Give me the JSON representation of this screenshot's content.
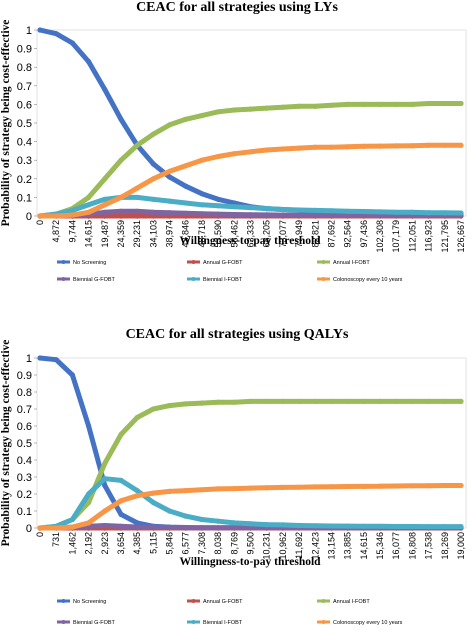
{
  "chart_data": [
    {
      "type": "line",
      "title": "CEAC for all strategies using LYs",
      "xlabel": "Willingness-to-pay threshold",
      "ylabel": "Probability of strategy being cost-effective",
      "ylim": [
        0,
        1
      ],
      "yticks": [
        "0",
        "0.1",
        "0.2",
        "0.3",
        "0.4",
        "0.5",
        "0.6",
        "0.7",
        "0.8",
        "0.9",
        "1"
      ],
      "categories": [
        "0",
        "4,872",
        "9,744",
        "14,615",
        "19,487",
        "24,359",
        "29,231",
        "34,103",
        "38,974",
        "43,846",
        "48,718",
        "53,590",
        "58,462",
        "63,333",
        "68,205",
        "73,077",
        "77,949",
        "82,821",
        "87,692",
        "92,564",
        "97,436",
        "102,308",
        "107,179",
        "112,051",
        "116,923",
        "121,795",
        "126,667"
      ],
      "legend_position": "bottom",
      "series": [
        {
          "name": "No Screening",
          "color": "#4472C4",
          "values": [
            1.0,
            0.98,
            0.93,
            0.83,
            0.68,
            0.52,
            0.38,
            0.28,
            0.21,
            0.16,
            0.12,
            0.09,
            0.07,
            0.05,
            0.04,
            0.035,
            0.03,
            0.025,
            0.02,
            0.02,
            0.018,
            0.016,
            0.015,
            0.014,
            0.013,
            0.012,
            0.012
          ]
        },
        {
          "name": "Annual G-FOBT",
          "color": "#C0504D",
          "values": [
            0,
            0,
            0,
            0,
            0,
            0,
            0,
            0,
            0,
            0,
            0,
            0,
            0,
            0,
            0,
            0,
            0,
            0,
            0,
            0,
            0,
            0,
            0,
            0,
            0,
            0,
            0
          ]
        },
        {
          "name": "Annual I-FOBT",
          "color": "#9BBB59",
          "values": [
            0.0,
            0.01,
            0.04,
            0.1,
            0.2,
            0.3,
            0.38,
            0.44,
            0.49,
            0.52,
            0.54,
            0.56,
            0.57,
            0.575,
            0.58,
            0.585,
            0.59,
            0.59,
            0.595,
            0.6,
            0.6,
            0.6,
            0.6,
            0.6,
            0.605,
            0.605,
            0.605
          ]
        },
        {
          "name": "Biennial G-FOBT",
          "color": "#8064A2",
          "values": [
            0.0,
            0.0,
            0.005,
            0.01,
            0.02,
            0.025,
            0.025,
            0.02,
            0.018,
            0.015,
            0.012,
            0.01,
            0.008,
            0.007,
            0.006,
            0.005,
            0.004,
            0.004,
            0.003,
            0.003,
            0.003,
            0.002,
            0.002,
            0.002,
            0.002,
            0.002,
            0.002
          ]
        },
        {
          "name": "Biennial I-FOBT",
          "color": "#4BACC6",
          "values": [
            0.0,
            0.01,
            0.03,
            0.06,
            0.09,
            0.1,
            0.1,
            0.09,
            0.08,
            0.07,
            0.06,
            0.055,
            0.05,
            0.045,
            0.04,
            0.035,
            0.032,
            0.03,
            0.028,
            0.025,
            0.024,
            0.022,
            0.02,
            0.02,
            0.018,
            0.017,
            0.016
          ]
        },
        {
          "name": "Colonoscopy every 10 years",
          "color": "#F79646",
          "values": [
            0.0,
            0.0,
            0.005,
            0.02,
            0.06,
            0.1,
            0.15,
            0.2,
            0.24,
            0.27,
            0.3,
            0.32,
            0.335,
            0.345,
            0.355,
            0.36,
            0.365,
            0.37,
            0.37,
            0.372,
            0.375,
            0.376,
            0.377,
            0.378,
            0.38,
            0.38,
            0.38
          ]
        }
      ]
    },
    {
      "type": "line",
      "title": "CEAC for all strategies using QALYs",
      "xlabel": "Willingness-to-pay threshold",
      "ylabel": "Probability of strategy being cost-effective",
      "ylim": [
        0,
        1
      ],
      "yticks": [
        "0",
        "0.1",
        "0.2",
        "0.3",
        "0.4",
        "0.5",
        "0.6",
        "0.7",
        "0.8",
        "0.9",
        "1"
      ],
      "categories": [
        "0",
        "731",
        "1,462",
        "2,192",
        "2,923",
        "3,654",
        "4,385",
        "5,115",
        "5,846",
        "6,577",
        "7,308",
        "8,038",
        "8,769",
        "9,500",
        "10,231",
        "10,962",
        "11,692",
        "12,423",
        "13,154",
        "13,885",
        "14,615",
        "15,346",
        "16,077",
        "16,808",
        "17,538",
        "18,269",
        "19,000"
      ],
      "legend_position": "bottom",
      "series": [
        {
          "name": "No Screening",
          "color": "#4472C4",
          "values": [
            1.0,
            0.99,
            0.9,
            0.6,
            0.25,
            0.08,
            0.03,
            0.01,
            0.005,
            0.003,
            0.002,
            0.001,
            0.001,
            0.001,
            0.001,
            0.001,
            0.001,
            0.001,
            0.001,
            0.001,
            0.001,
            0.001,
            0.001,
            0.001,
            0.001,
            0.001,
            0.001
          ]
        },
        {
          "name": "Annual G-FOBT",
          "color": "#C0504D",
          "values": [
            0,
            0,
            0,
            0,
            0,
            0,
            0,
            0,
            0,
            0,
            0,
            0,
            0,
            0,
            0,
            0,
            0,
            0,
            0,
            0,
            0,
            0,
            0,
            0,
            0,
            0,
            0
          ]
        },
        {
          "name": "Annual I-FOBT",
          "color": "#9BBB59",
          "values": [
            0.0,
            0.01,
            0.05,
            0.15,
            0.38,
            0.55,
            0.65,
            0.7,
            0.72,
            0.73,
            0.735,
            0.74,
            0.74,
            0.745,
            0.745,
            0.745,
            0.745,
            0.745,
            0.745,
            0.745,
            0.745,
            0.745,
            0.745,
            0.745,
            0.745,
            0.745,
            0.745
          ]
        },
        {
          "name": "Biennial G-FOBT",
          "color": "#8064A2",
          "values": [
            0.0,
            0.0,
            0.005,
            0.01,
            0.015,
            0.01,
            0.006,
            0.004,
            0.003,
            0.002,
            0.002,
            0.001,
            0.001,
            0.001,
            0.001,
            0.001,
            0.001,
            0.001,
            0.001,
            0.001,
            0.001,
            0.001,
            0.001,
            0.001,
            0.001,
            0.001,
            0.001
          ]
        },
        {
          "name": "Biennial I-FOBT",
          "color": "#4BACC6",
          "values": [
            0.0,
            0.01,
            0.05,
            0.2,
            0.29,
            0.28,
            0.22,
            0.15,
            0.1,
            0.07,
            0.05,
            0.04,
            0.03,
            0.025,
            0.02,
            0.018,
            0.015,
            0.013,
            0.012,
            0.011,
            0.01,
            0.01,
            0.009,
            0.009,
            0.008,
            0.008,
            0.008
          ]
        },
        {
          "name": "Colonoscopy every 10 years",
          "color": "#F79646",
          "values": [
            0.0,
            0.0,
            0.005,
            0.03,
            0.1,
            0.16,
            0.19,
            0.205,
            0.215,
            0.22,
            0.225,
            0.23,
            0.232,
            0.235,
            0.237,
            0.239,
            0.24,
            0.242,
            0.243,
            0.244,
            0.245,
            0.246,
            0.247,
            0.248,
            0.249,
            0.25,
            0.25
          ]
        }
      ]
    }
  ]
}
